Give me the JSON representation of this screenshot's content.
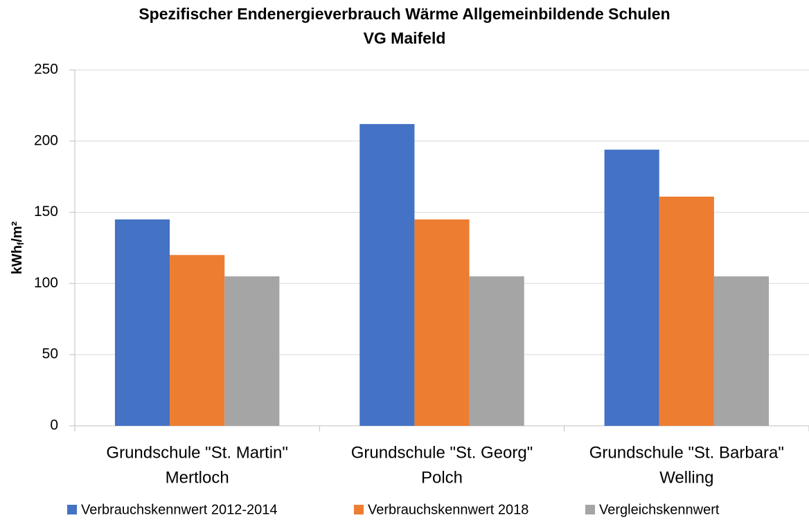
{
  "chart_data": {
    "type": "bar",
    "title": [
      "Spezifischer Endenergieverbrauch Wärme Allgemeinbildende Schulen",
      "VG Maifeld"
    ],
    "ylabel": [
      "kWh",
      "f",
      "/m²"
    ],
    "categories": [
      [
        "Grundschule \"St. Martin\"",
        "Mertloch"
      ],
      [
        "Grundschule \"St. Georg\"",
        "Polch"
      ],
      [
        "Grundschule \"St. Barbara\"",
        "Welling"
      ]
    ],
    "series": [
      {
        "name": "Verbrauchskennwert 2012-2014",
        "color": "#4472c4",
        "values": [
          145,
          212,
          194
        ]
      },
      {
        "name": "Verbrauchskennwert 2018",
        "color": "#ed7d31",
        "values": [
          120,
          145,
          161
        ]
      },
      {
        "name": "Vergleichskennwert",
        "color": "#a5a5a5",
        "values": [
          105,
          105,
          105
        ]
      }
    ],
    "ylim": [
      0,
      250
    ],
    "yticks": [
      0,
      50,
      100,
      150,
      200,
      250
    ],
    "grid": true,
    "legend": "bottom"
  }
}
